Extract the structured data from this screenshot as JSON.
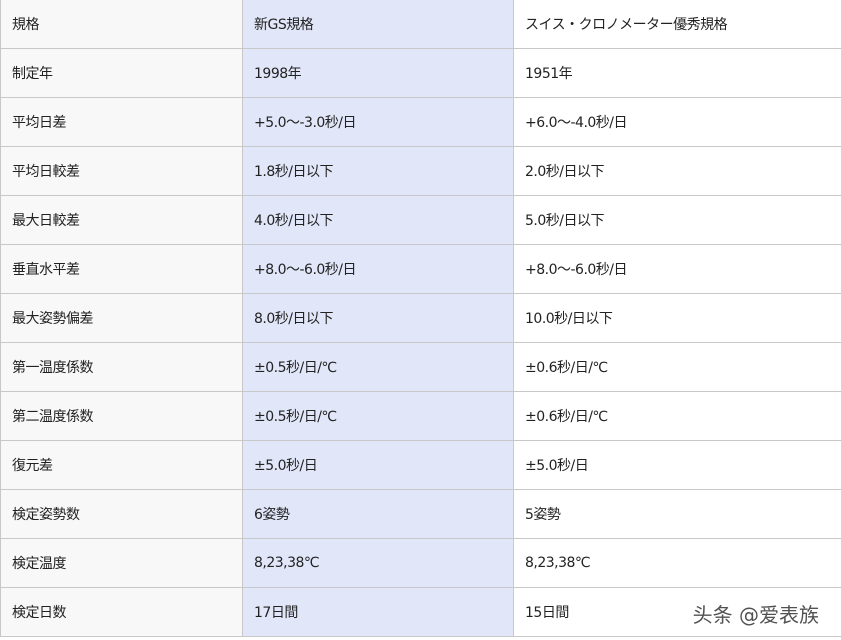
{
  "table": {
    "header": [
      "規格",
      "新GS規格",
      "スイス・クロノメーター優秀規格"
    ],
    "rows": [
      [
        "制定年",
        "1998年",
        "1951年"
      ],
      [
        "平均日差",
        "+5.0〜-3.0秒/日",
        "+6.0〜-4.0秒/日"
      ],
      [
        "平均日較差",
        "1.8秒/日以下",
        "2.0秒/日以下"
      ],
      [
        "最大日較差",
        "4.0秒/日以下",
        "5.0秒/日以下"
      ],
      [
        "垂直水平差",
        "+8.0〜-6.0秒/日",
        "+8.0〜-6.0秒/日"
      ],
      [
        "最大姿勢偏差",
        "8.0秒/日以下",
        "10.0秒/日以下"
      ],
      [
        "第一温度係数",
        "±0.5秒/日/℃",
        "±0.6秒/日/℃"
      ],
      [
        "第二温度係数",
        "±0.5秒/日/℃",
        "±0.6秒/日/℃"
      ],
      [
        "復元差",
        "±5.0秒/日",
        "±5.0秒/日"
      ],
      [
        "検定姿勢数",
        "6姿勢",
        "5姿勢"
      ],
      [
        "検定温度",
        "8,23,38℃",
        "8,23,38℃"
      ],
      [
        "検定日数",
        "17日間",
        "15日間"
      ]
    ]
  },
  "watermark": "头条 @爱表族",
  "colors": {
    "label_col": "#f8f8f8",
    "highlight_col": "#e1e7f9",
    "border": "#c8c8c8"
  }
}
